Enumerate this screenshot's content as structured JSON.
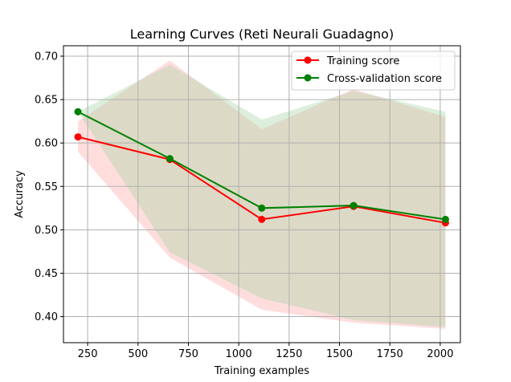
{
  "chart_data": {
    "type": "line",
    "title": "Learning Curves (Reti Neurali Guadagno)",
    "xlabel": "Training examples",
    "ylabel": "Accuracy",
    "xlim": [
      130,
      2100
    ],
    "ylim": [
      0.37,
      0.712
    ],
    "xticks": [
      250,
      500,
      750,
      1000,
      1250,
      1500,
      1750,
      2000
    ],
    "yticks": [
      0.4,
      0.45,
      0.5,
      0.55,
      0.6,
      0.65,
      0.7
    ],
    "ytick_labels": [
      "0.40",
      "0.45",
      "0.50",
      "0.55",
      "0.60",
      "0.65",
      "0.70"
    ],
    "grid": true,
    "legend_position": "upper-right",
    "x": [
      202,
      658,
      1114,
      1570,
      2026
    ],
    "series": [
      {
        "name": "Training score",
        "color": "#ff0000",
        "band_color": "#ffb3b3",
        "marker": "circle",
        "values": [
          0.607,
          0.581,
          0.512,
          0.527,
          0.508
        ],
        "band_upper": [
          0.625,
          0.695,
          0.616,
          0.662,
          0.63
        ],
        "band_lower": [
          0.59,
          0.468,
          0.408,
          0.393,
          0.386
        ]
      },
      {
        "name": "Cross-validation score",
        "color": "#008000",
        "band_color": "#a8d8a8",
        "marker": "circle",
        "values": [
          0.636,
          0.582,
          0.525,
          0.528,
          0.512
        ],
        "band_upper": [
          0.636,
          0.69,
          0.627,
          0.66,
          0.636
        ],
        "band_lower": [
          0.636,
          0.474,
          0.421,
          0.396,
          0.388
        ]
      }
    ]
  }
}
